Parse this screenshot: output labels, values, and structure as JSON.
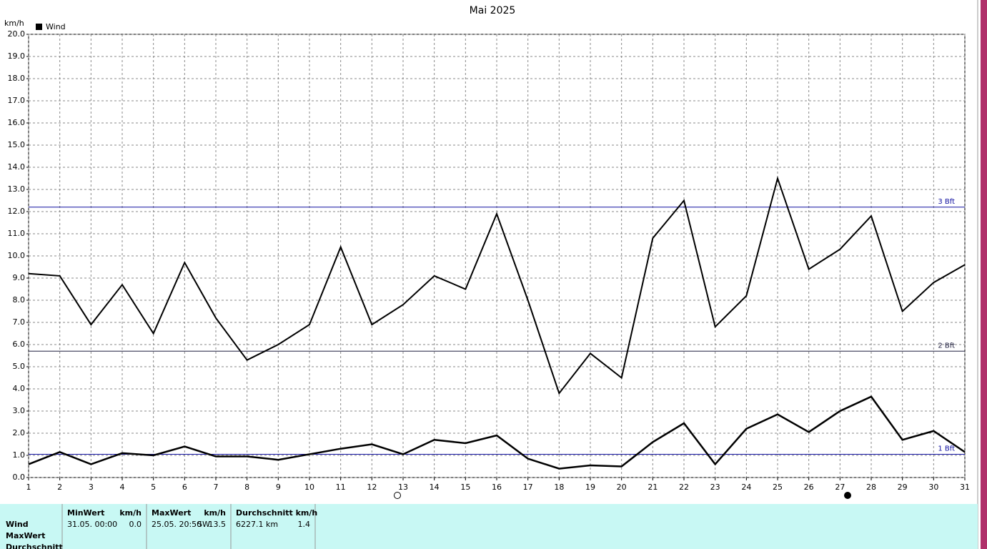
{
  "chart_data": {
    "type": "line",
    "title": "Mai 2025",
    "y_label": "km/h",
    "x": [
      1,
      2,
      3,
      4,
      5,
      6,
      7,
      8,
      9,
      10,
      11,
      12,
      13,
      14,
      15,
      16,
      17,
      18,
      19,
      20,
      21,
      22,
      23,
      24,
      25,
      26,
      27,
      28,
      29,
      30,
      31
    ],
    "series": [
      {
        "name": "Wind",
        "color": "#000000",
        "values": [
          9.2,
          9.1,
          6.9,
          8.7,
          6.5,
          9.7,
          7.2,
          5.3,
          6.0,
          6.9,
          10.4,
          6.9,
          7.8,
          9.1,
          8.5,
          11.9,
          8.0,
          3.8,
          5.6,
          4.5,
          10.8,
          12.5,
          6.8,
          8.2,
          13.5,
          9.4,
          10.3,
          11.8,
          7.5,
          8.8,
          9.6
        ]
      },
      {
        "color": "#000000",
        "values": [
          0.6,
          1.15,
          0.6,
          1.1,
          1.0,
          1.4,
          0.95,
          0.95,
          0.8,
          1.05,
          1.3,
          1.5,
          1.05,
          1.7,
          1.55,
          1.9,
          0.85,
          0.4,
          0.55,
          0.5,
          1.6,
          2.45,
          0.6,
          2.2,
          2.85,
          2.05,
          3.0,
          3.65,
          1.7,
          2.1,
          1.15
        ]
      }
    ],
    "xlim": [
      1,
      31
    ],
    "xticks": [
      1,
      2,
      3,
      4,
      5,
      6,
      7,
      8,
      9,
      10,
      11,
      12,
      13,
      14,
      15,
      16,
      17,
      18,
      19,
      20,
      21,
      22,
      23,
      24,
      25,
      26,
      27,
      28,
      29,
      30,
      31
    ],
    "ylim": [
      0,
      20
    ],
    "yticks": [
      {
        "value": 0,
        "label": "0.0"
      },
      {
        "value": 1,
        "label": "1.0"
      },
      {
        "value": 2,
        "label": "2.0"
      },
      {
        "value": 3,
        "label": "3.0"
      },
      {
        "value": 4,
        "label": "4.0"
      },
      {
        "value": 5,
        "label": "5.0"
      },
      {
        "value": 6,
        "label": "6.0"
      },
      {
        "value": 7,
        "label": "7.0"
      },
      {
        "value": 8,
        "label": "8.0"
      },
      {
        "value": 9,
        "label": "9.0"
      },
      {
        "value": 10,
        "label": "10.0"
      },
      {
        "value": 11,
        "label": "11.0"
      },
      {
        "value": 12,
        "label": "12.0"
      },
      {
        "value": 13,
        "label": "13.0"
      },
      {
        "value": 14,
        "label": "14.0"
      },
      {
        "value": 15,
        "label": "15.0"
      },
      {
        "value": 16,
        "label": "16.0"
      },
      {
        "value": 17,
        "label": "17.0"
      },
      {
        "value": 18,
        "label": "18.0"
      },
      {
        "value": 19,
        "label": "19.0"
      },
      {
        "value": 20,
        "label": "20.0"
      }
    ],
    "grid": true,
    "legend": "top-left",
    "reference_lines": [
      {
        "value": 12.2,
        "label": "3 Bft",
        "color": "#1010a0"
      },
      {
        "value": 5.7,
        "label": "2 Bft",
        "color": "#202040"
      },
      {
        "value": 1.05,
        "label": "1 Bft",
        "color": "#1010a0"
      }
    ]
  },
  "stats_table": {
    "headers": [
      "MinWert",
      "km/h",
      "MaxWert",
      "km/h",
      "Durchschnitt km/h"
    ],
    "row_labels": [
      "Wind",
      "MaxWert",
      "Durchschnitt"
    ],
    "rows": [
      [
        "31.05.  00:00",
        "0.0",
        "25.05.  20:50",
        "SW",
        "13.5",
        "6227.1 km",
        "1.4"
      ]
    ]
  }
}
